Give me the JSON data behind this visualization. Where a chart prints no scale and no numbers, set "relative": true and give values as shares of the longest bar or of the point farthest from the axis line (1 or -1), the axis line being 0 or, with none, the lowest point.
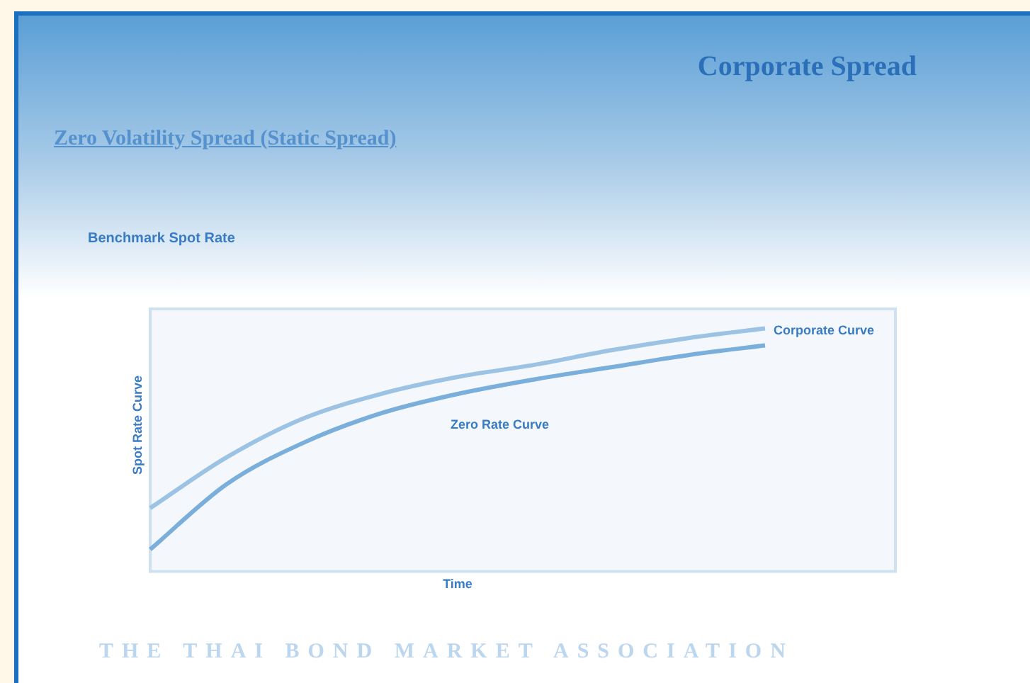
{
  "chart_data": {
    "type": "line",
    "title": "Corporate Spread",
    "subtitle": "Zero Volatility Spread (Static Spread)",
    "xlabel": "Time",
    "ylabel": "Spot Rate Curve",
    "relative": true,
    "categories": [
      null,
      null,
      null,
      null,
      null,
      null,
      null,
      null,
      null
    ],
    "series": [
      {
        "name": "Corporate Curve",
        "color": "#9cc3e4",
        "values": [
          0.26,
          0.47,
          0.63,
          0.73,
          0.8,
          0.85,
          0.91,
          0.96,
          1
        ]
      },
      {
        "name": "Zero Rate Curve",
        "color": "#7aaedb",
        "values": [
          0.09,
          0.36,
          0.53,
          0.65,
          0.73,
          0.79,
          0.84,
          0.89,
          0.93
        ]
      }
    ],
    "legend": false,
    "grid": false,
    "marker": "none",
    "line_style": "solid",
    "annotations": [
      "Benchmark Spot Rate",
      "THE THAI BOND MARKET ASSOCIATION"
    ]
  }
}
